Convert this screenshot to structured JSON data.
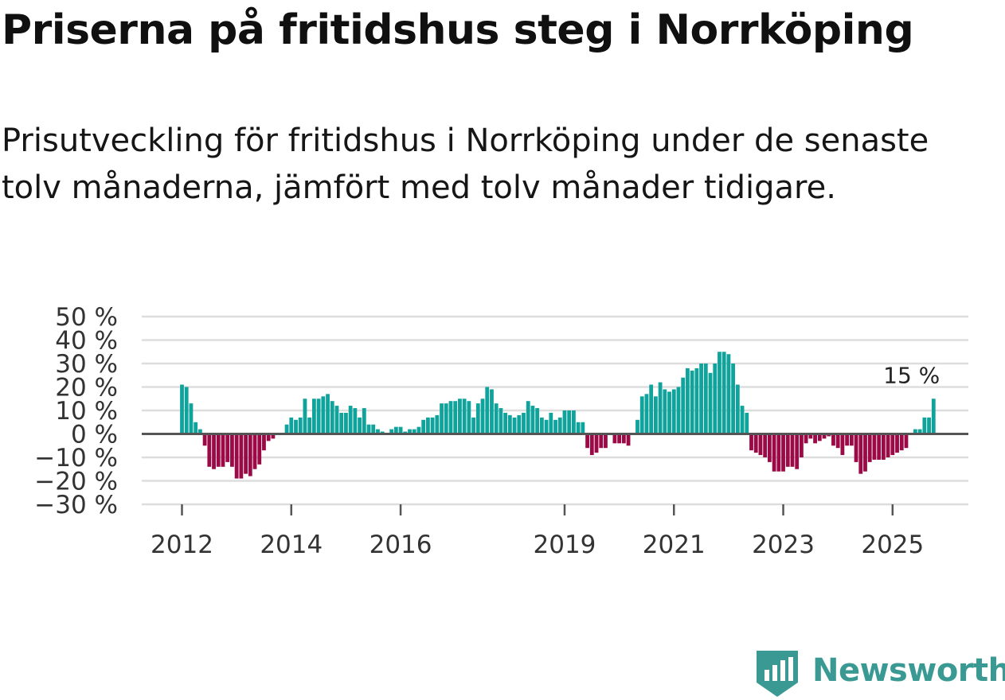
{
  "header": {
    "title": "Priserna på fritidshus steg i Norrköping",
    "subtitle": "Prisutveckling för fritidshus i Norrköping under de senaste tolv månaderna, jämfört med tolv månader tidigare."
  },
  "colors": {
    "positive": "#0fa39c",
    "negative": "#9b0a46",
    "grid": "#dddddd",
    "zero_line": "#555555",
    "text": "#333333",
    "brand": "#3a9a93"
  },
  "chart_data": {
    "type": "bar",
    "start_year": 2012,
    "start_month": 1,
    "y_unit": " %",
    "ylim": [
      -30,
      50
    ],
    "y_ticks": [
      50,
      40,
      30,
      20,
      10,
      0,
      -10,
      -20,
      -30
    ],
    "y_tick_labels": [
      "50 %",
      "40 %",
      "30 %",
      "20 %",
      "10 %",
      "0 %",
      "−10 %",
      "−20 %",
      "−30 %"
    ],
    "x_tick_labels": [
      "2012",
      "2014",
      "2016",
      "2019",
      "2021",
      "2023",
      "2025"
    ],
    "annotation": {
      "label": "15 %",
      "value": 15
    },
    "values": [
      21,
      20,
      13,
      5,
      2,
      -5,
      -14,
      -15,
      -14,
      -14,
      -12,
      -14,
      -19,
      -19,
      -17,
      -18,
      -15,
      -13,
      -7,
      -3,
      -2,
      0,
      0,
      4,
      7,
      6,
      7,
      15,
      7,
      15,
      15,
      16,
      17,
      14,
      12,
      9,
      9,
      12,
      11,
      7,
      11,
      4,
      4,
      2,
      1,
      0,
      2,
      3,
      3,
      1,
      2,
      2,
      3,
      6,
      7,
      7,
      8,
      13,
      13,
      14,
      14,
      15,
      15,
      14,
      7,
      13,
      15,
      20,
      19,
      13,
      11,
      9,
      8,
      7,
      8,
      9,
      14,
      12,
      11,
      7,
      6,
      9,
      6,
      7,
      10,
      10,
      10,
      5,
      5,
      -6,
      -9,
      -8,
      -6,
      -6,
      0,
      -4,
      -4,
      -4,
      -5,
      0,
      6,
      16,
      17,
      21,
      16,
      22,
      19,
      18,
      19,
      20,
      24,
      28,
      27,
      28,
      30,
      30,
      26,
      30,
      35,
      35,
      34,
      30,
      21,
      12,
      9,
      -7,
      -8,
      -9,
      -10,
      -12,
      -16,
      -16,
      -16,
      -14,
      -14,
      -15,
      -10,
      -4,
      -2,
      -4,
      -3,
      -2,
      -1,
      -5,
      -6,
      -9,
      -5,
      -5,
      -12,
      -17,
      -16,
      -12,
      -11,
      -11,
      -11,
      -10,
      -9,
      -8,
      -7,
      -6,
      0,
      2,
      2,
      7,
      7,
      15
    ]
  },
  "brand": {
    "name": "Newsworthy",
    "logo_icon": "newsworthy-logo-icon"
  }
}
